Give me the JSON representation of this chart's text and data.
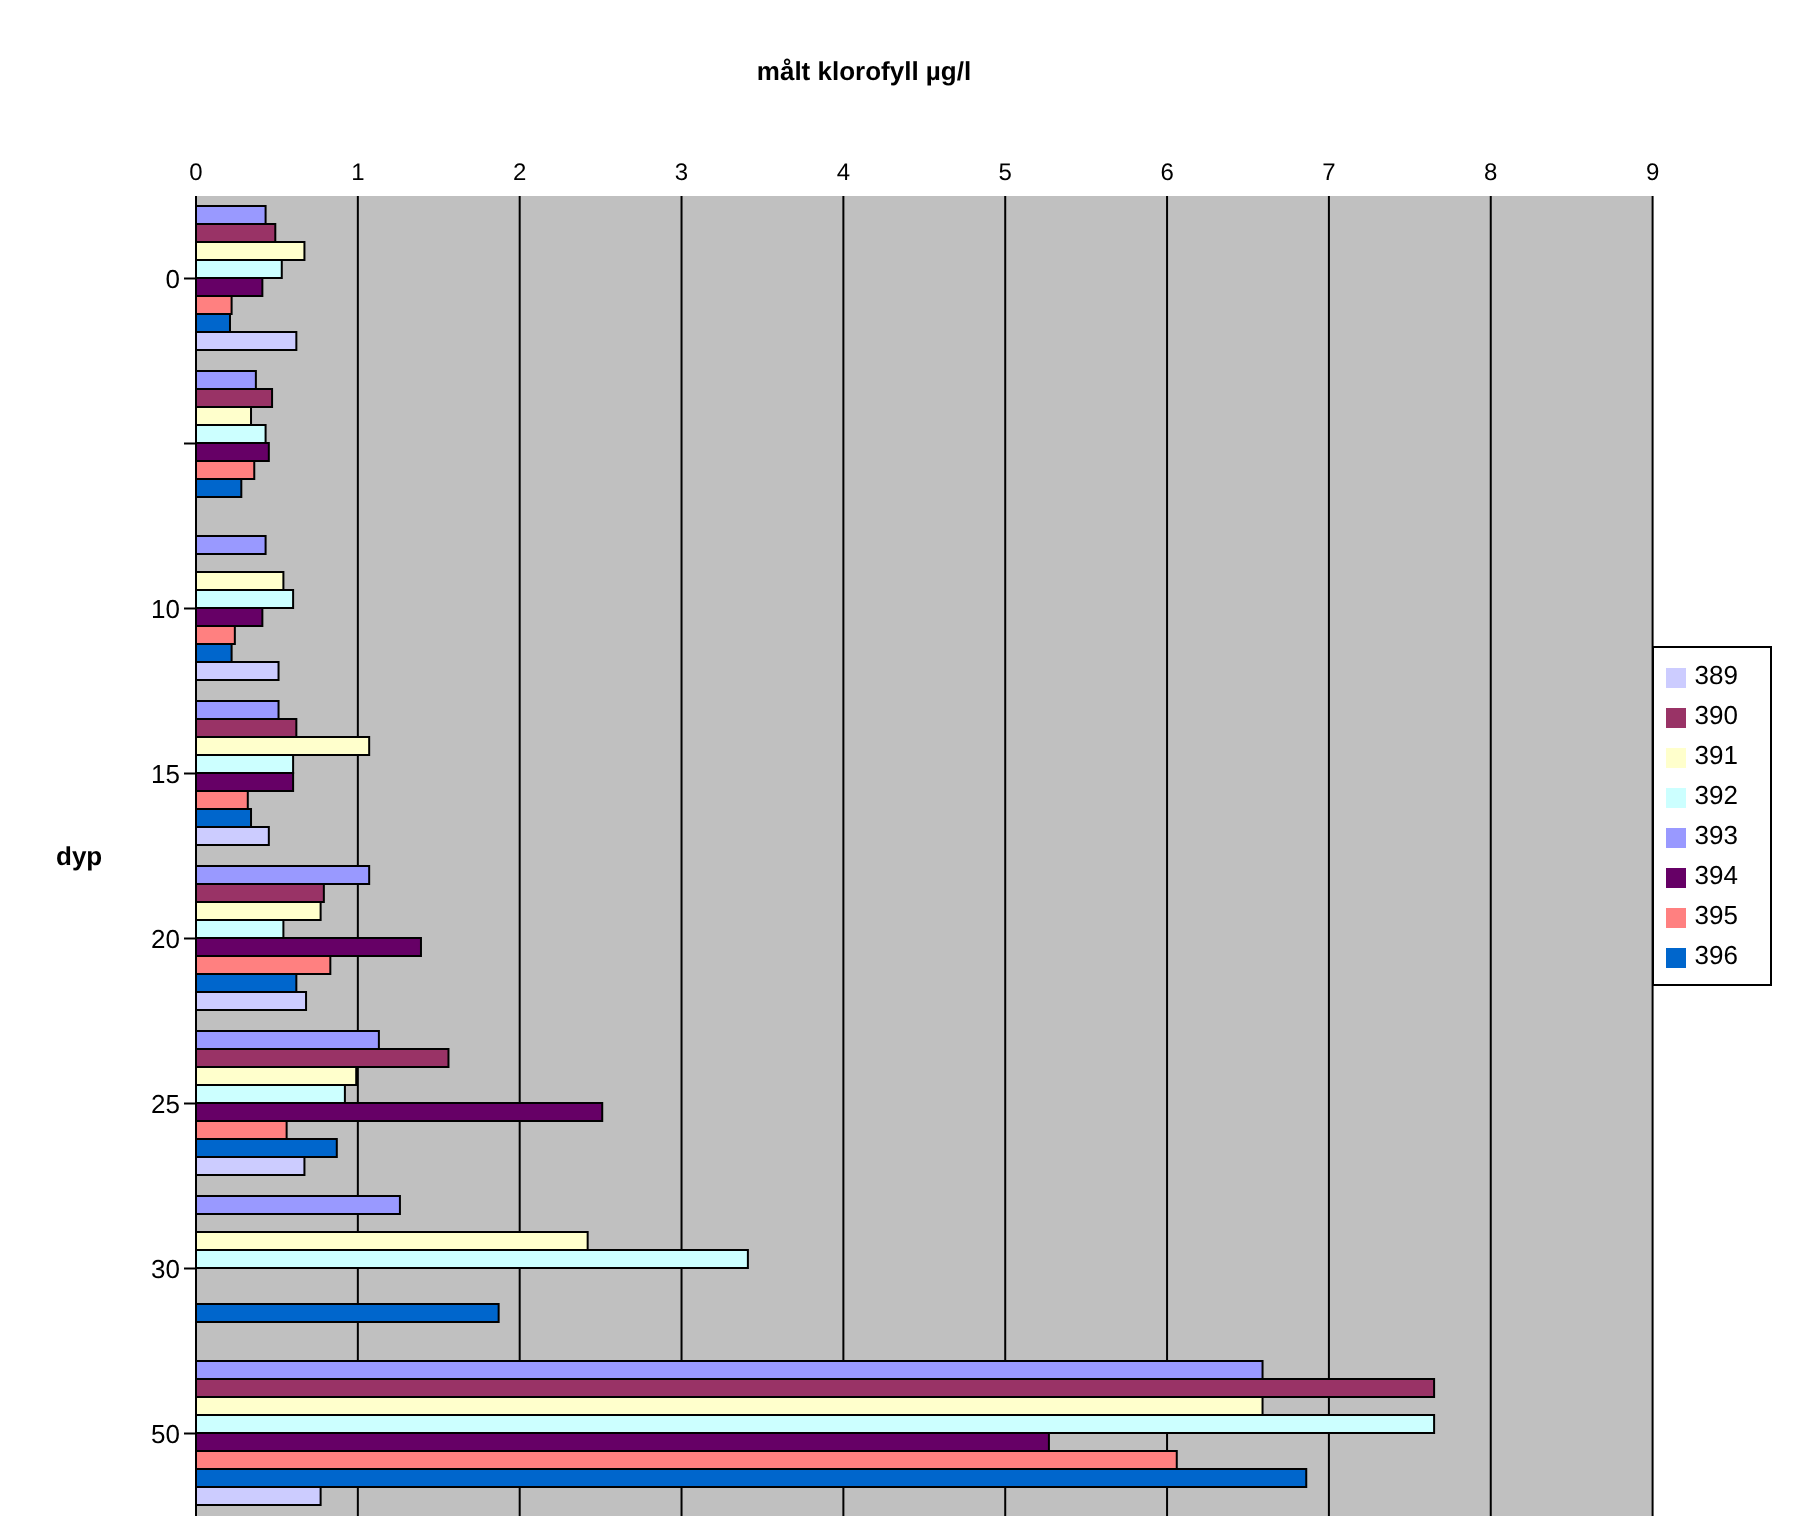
{
  "chart_data": {
    "type": "bar",
    "orientation": "horizontal",
    "title": "målt klorofyll µg/l",
    "ylabel": "dyp",
    "categories": [
      "0",
      null,
      "10",
      "15",
      "20",
      "25",
      "30",
      "50"
    ],
    "series": [
      {
        "name": "393",
        "color": "#9999ff",
        "values": [
          0.43,
          0.37,
          0.43,
          0.51,
          1.07,
          1.13,
          1.26,
          6.59
        ]
      },
      {
        "name": "390",
        "color": "#993366",
        "values": [
          0.49,
          0.47,
          null,
          0.62,
          0.79,
          1.56,
          null,
          7.65
        ]
      },
      {
        "name": "391",
        "color": "#ffffcc",
        "values": [
          0.67,
          0.34,
          0.54,
          1.07,
          0.77,
          0.99,
          2.42,
          6.59
        ]
      },
      {
        "name": "392",
        "color": "#ccffff",
        "values": [
          0.53,
          0.43,
          0.6,
          0.6,
          0.54,
          0.92,
          3.41,
          7.65
        ]
      },
      {
        "name": "394",
        "color": "#660066",
        "values": [
          0.41,
          0.45,
          0.41,
          0.6,
          1.39,
          2.51,
          null,
          5.27
        ]
      },
      {
        "name": "395",
        "color": "#ff8080",
        "values": [
          0.22,
          0.36,
          0.24,
          0.32,
          0.83,
          0.56,
          null,
          6.06
        ]
      },
      {
        "name": "396",
        "color": "#0066cc",
        "values": [
          0.21,
          0.28,
          0.22,
          0.34,
          0.62,
          0.87,
          1.87,
          6.86
        ]
      },
      {
        "name": "389",
        "color": "#ccccff",
        "values": [
          0.62,
          null,
          0.51,
          0.45,
          0.68,
          0.67,
          null,
          0.77
        ]
      }
    ],
    "xlim": [
      0,
      9
    ],
    "xticks": [
      0,
      1,
      2,
      3,
      4,
      5,
      6,
      7,
      8,
      9
    ],
    "grid": "x",
    "legend": "right"
  }
}
